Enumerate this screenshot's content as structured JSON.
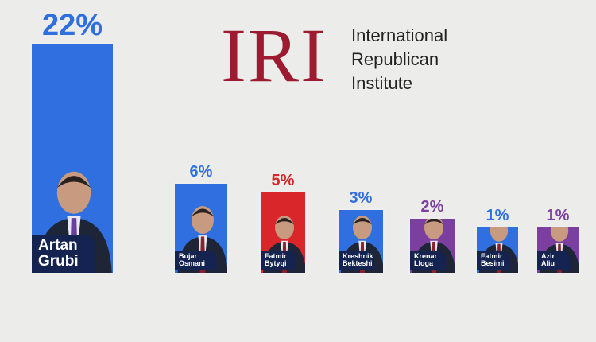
{
  "logo": {
    "mark": "IRI",
    "lines": [
      "International",
      "Republican",
      "Institute"
    ]
  },
  "chart_data": {
    "type": "bar",
    "categories": [
      "Artan Grubi",
      "Bujar Osmani",
      "Fatmir Bytyqi",
      "Kreshnik Bekteshi",
      "Krenar Lloga",
      "Fatmir Besimi",
      "Azir Aliu"
    ],
    "values": [
      22,
      6,
      5,
      3,
      2,
      1,
      1
    ],
    "value_labels": [
      "22%",
      "6%",
      "5%",
      "3%",
      "2%",
      "1%",
      "1%"
    ],
    "colors": [
      "#2f6fe0",
      "#2f6fe0",
      "#d9262b",
      "#2f6fe0",
      "#7b3fa0",
      "#2f6fe0",
      "#7b3fa0"
    ]
  }
}
